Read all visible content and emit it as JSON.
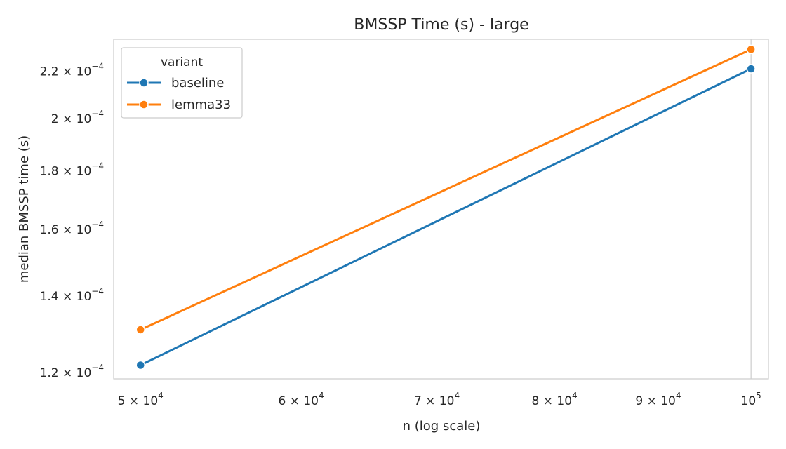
{
  "chart_data": {
    "type": "line",
    "title": "BMSSP Time (s) - large",
    "xlabel": "n (log scale)",
    "ylabel": "median BMSSP time (s)",
    "xscale": "log",
    "yscale": "log",
    "xlim": [
      48500,
      102000
    ],
    "ylim": [
      0.0001185,
      0.0002345
    ],
    "x": [
      50000,
      100000
    ],
    "series": [
      {
        "name": "baseline",
        "values": [
          0.0001218,
          0.000221
        ],
        "color": "#1f77b4"
      },
      {
        "name": "lemma33",
        "values": [
          0.0001308,
          0.0002298
        ],
        "color": "#ff7f0e"
      }
    ],
    "x_ticks": [
      {
        "value": 50000,
        "base": "5 × 10",
        "exp": "4"
      },
      {
        "value": 60000,
        "base": "6 × 10",
        "exp": "4"
      },
      {
        "value": 70000,
        "base": "7 × 10",
        "exp": "4"
      },
      {
        "value": 80000,
        "base": "8 × 10",
        "exp": "4"
      },
      {
        "value": 90000,
        "base": "9 × 10",
        "exp": "4"
      },
      {
        "value": 100000,
        "base": "10",
        "exp": "5"
      }
    ],
    "y_ticks": [
      {
        "value": 0.00012,
        "base": "1.2 × 10",
        "exp": "−4"
      },
      {
        "value": 0.00014,
        "base": "1.4 × 10",
        "exp": "−4"
      },
      {
        "value": 0.00016,
        "base": "1.6 × 10",
        "exp": "−4"
      },
      {
        "value": 0.00018,
        "base": "1.8 × 10",
        "exp": "−4"
      },
      {
        "value": 0.0002,
        "base": "2 × 10",
        "exp": "−4"
      },
      {
        "value": 0.00022,
        "base": "2.2 × 10",
        "exp": "−4"
      }
    ],
    "legend": {
      "title": "variant",
      "position": "top-left"
    },
    "grid": false
  }
}
